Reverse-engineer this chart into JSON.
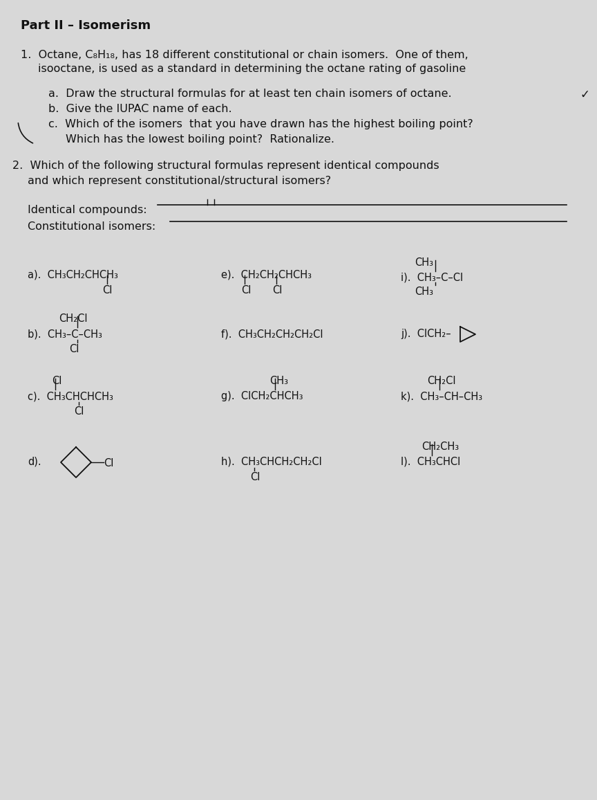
{
  "bg": "#d8d8d8",
  "tc": "#111111",
  "title": "Part II – Isomerism",
  "body_fs": 11.5,
  "chem_fs": 10.5,
  "sub_fs": 10.0,
  "q1_line1": "1.  Octane, C₈H₁₈, has 18 different constitutional or chain isomers.  One of them,",
  "q1_line2": "isooctane, is used as a standard in determining the octane rating of gasoline",
  "qa": "a.  Draw the structural formulas for at least ten chain isomers of octane.",
  "qb": "b.  Give the IUPAC name of each.",
  "qc1": "c.  Which of the isomers  that you have drawn has the highest boiling point?",
  "qc2": "Which has the lowest boiling point?  Rationalize.",
  "q2l1": "2.  Which of the following structural formulas represent identical compounds",
  "q2l2": "and which represent constitutional/structural isomers?",
  "id_label": "Identical compounds:",
  "ci_label": "Constitutional isomers:"
}
